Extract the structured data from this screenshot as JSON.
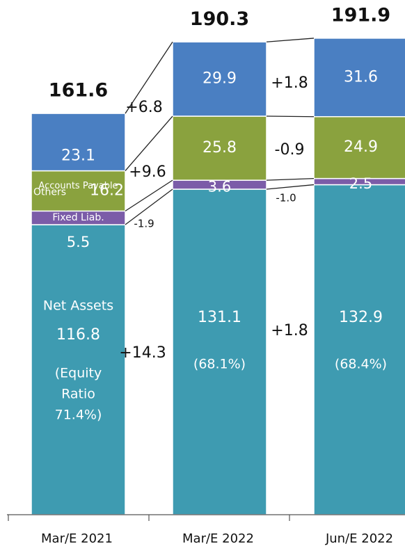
{
  "chart_data": {
    "type": "stacked_bar",
    "categories": [
      "Mar/E 2021",
      "Mar/E 2022",
      "Jun/E 2022"
    ],
    "series": [
      {
        "name": "Net Assets",
        "color": "#3e9bb1",
        "values": [
          116.8,
          131.1,
          132.9
        ]
      },
      {
        "name": "Fixed Liab.",
        "color": "#7b5ca8",
        "values": [
          5.5,
          3.6,
          2.5
        ]
      },
      {
        "name": "Others",
        "color": "#8aa23e",
        "values": [
          16.2,
          25.8,
          24.9
        ]
      },
      {
        "name": "Accounts Payable",
        "color": "#4a7fc2",
        "values": [
          23.1,
          29.9,
          31.6
        ]
      }
    ],
    "totals": [
      161.6,
      190.3,
      191.9
    ],
    "equity_ratio_lines": [
      [
        "(Equity",
        "Ratio",
        "71.4%)"
      ],
      [
        "(68.1%)"
      ],
      [
        "(68.4%)"
      ]
    ],
    "changes": [
      {
        "values": [
          14.3,
          -1.9,
          9.6,
          6.8
        ],
        "value_labels": [
          "+14.3",
          "-1.9",
          "+9.6",
          "+6.8"
        ]
      },
      {
        "values": [
          1.8,
          -1.0,
          -0.9,
          1.8
        ],
        "value_labels": [
          "+1.8",
          "-1.0",
          "-0.9",
          "+1.8"
        ]
      }
    ]
  }
}
